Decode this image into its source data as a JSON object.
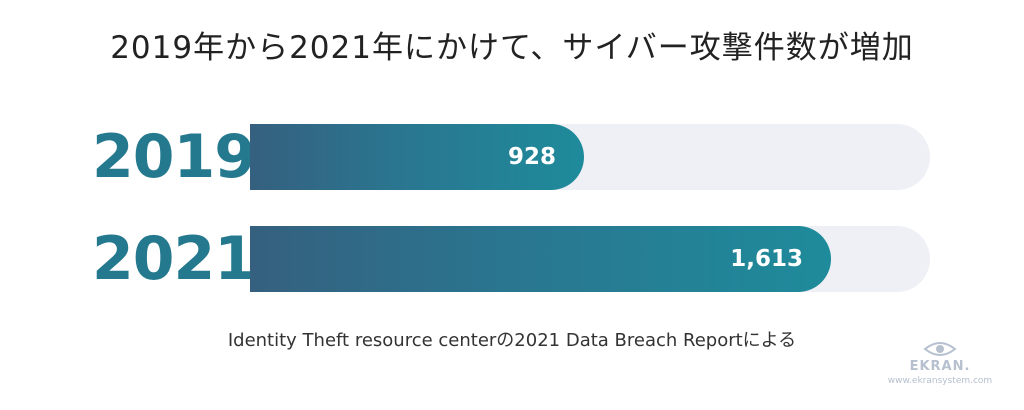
{
  "chart_data": {
    "type": "bar",
    "orientation": "horizontal",
    "title": "2019年から2021年にかけて、サイバー攻撃件数が増加",
    "categories": [
      "2019",
      "2021"
    ],
    "values": [
      928,
      1613
    ],
    "value_labels": [
      "928",
      "1,613"
    ],
    "xlim": [
      0,
      1888
    ],
    "grid": false,
    "source": "Identity Theft resource centerの2021 Data Breach Reportによる"
  },
  "brand": {
    "name": "EKRAN.",
    "url": "www.ekransystem.com",
    "icon": "eye-icon"
  },
  "colors": {
    "bar_start": "#35607f",
    "bar_end": "#1e8b9b",
    "track": "#eef0f5",
    "year_label": "#24798f"
  }
}
